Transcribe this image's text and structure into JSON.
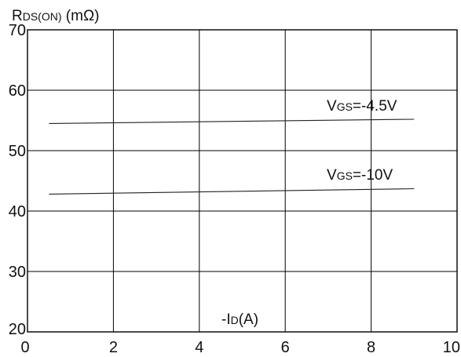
{
  "chart_data": {
    "type": "line",
    "ylabel": {
      "main": "R",
      "sub": "DS(ON)",
      "unit": " (mΩ)"
    },
    "xlabel": {
      "prefix": "-I",
      "sub": "D",
      "suffix": "(A)"
    },
    "xlim": [
      0,
      10
    ],
    "ylim": [
      20,
      70
    ],
    "x_ticks": [
      0,
      2,
      4,
      6,
      8,
      10
    ],
    "y_ticks": [
      20,
      30,
      40,
      50,
      60,
      70
    ],
    "grid": true,
    "series": [
      {
        "name": "VGS=-4.5V",
        "label": {
          "main": "V",
          "sub": "GS",
          "suffix": "=-4.5V"
        },
        "x": [
          0.5,
          9.0
        ],
        "values": [
          54.5,
          55.2
        ]
      },
      {
        "name": "VGS=-10V",
        "label": {
          "main": "V",
          "sub": "GS",
          "suffix": "=-10V"
        },
        "x": [
          0.5,
          9.0
        ],
        "values": [
          42.8,
          43.7
        ]
      }
    ]
  }
}
